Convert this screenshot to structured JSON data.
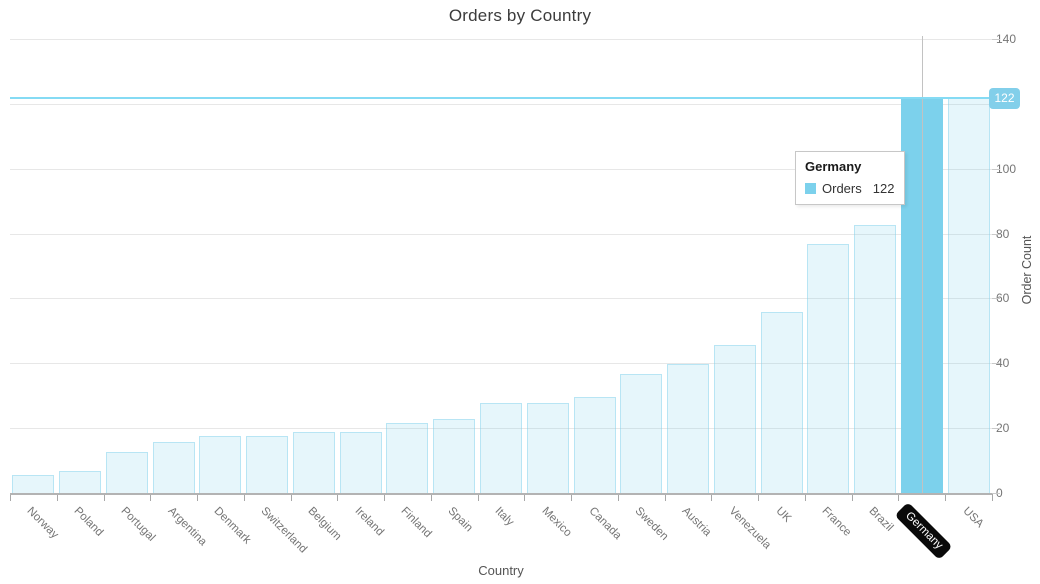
{
  "title": "Orders by Country",
  "chart_data": {
    "type": "bar",
    "title": "Orders by Country",
    "xlabel": "Country",
    "ylabel": "Order Count",
    "categories": [
      "Norway",
      "Poland",
      "Portugal",
      "Argentina",
      "Denmark",
      "Switzerland",
      "Belgium",
      "Ireland",
      "Finland",
      "Spain",
      "Italy",
      "Mexico",
      "Canada",
      "Sweden",
      "Austria",
      "Venezuela",
      "UK",
      "France",
      "Brazil",
      "Germany",
      "USA"
    ],
    "series": [
      {
        "name": "Orders",
        "values": [
          6,
          7,
          13,
          16,
          18,
          18,
          19,
          19,
          22,
          23,
          28,
          28,
          30,
          37,
          40,
          46,
          56,
          77,
          83,
          122,
          122
        ]
      }
    ],
    "ylim": [
      0,
      140
    ],
    "ytick_interval": 20,
    "ytick_labels_visible": [
      0,
      20,
      40,
      60,
      80,
      100,
      140
    ],
    "grid": true,
    "legend_position": "none",
    "highlighted_category": "Germany",
    "highlighted_index": 19
  },
  "tooltip": {
    "header": "Germany",
    "series_label": "Orders",
    "value": "122"
  },
  "crosshair": {
    "y_value": 122,
    "y_badge_label": "122",
    "x_label": "Germany"
  },
  "colors": {
    "bar_fill": "rgba(128,208,236,0.20)",
    "bar_border": "rgba(128,208,236,0.45)",
    "bar_highlight": "#7cd1ec",
    "crosshair_line_h": "#85dbf4",
    "crosshair_line_v": "#c2c2c2",
    "badge_bg": "#82cfea",
    "tooltip_swatch": "#7cd1ec",
    "gridline": "#e7e7e7",
    "axis_label": "#757575"
  }
}
